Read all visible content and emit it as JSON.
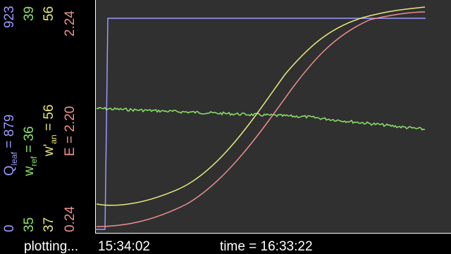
{
  "axes": {
    "qleaf": {
      "label": "Q",
      "sub": "leaf",
      "value": "= 879",
      "min": "0",
      "max": "923",
      "color": "#9a9aff"
    },
    "wref": {
      "label": "w",
      "sub": "ref",
      "value": "= 36",
      "min": "35",
      "max": "39",
      "color": "#8fe36b"
    },
    "wan": {
      "label": "w'",
      "sub": "an",
      "value": "= 56",
      "min": "37",
      "max": "56",
      "color": "#e6e87a"
    },
    "e": {
      "label": "E",
      "value": "= 2.20",
      "min": "0.24",
      "max": "2.24",
      "color": "#ef8f8f"
    }
  },
  "status": {
    "state": "plotting...",
    "start_time": "15:34:02",
    "current_time": "time = 16:33:22"
  }
}
